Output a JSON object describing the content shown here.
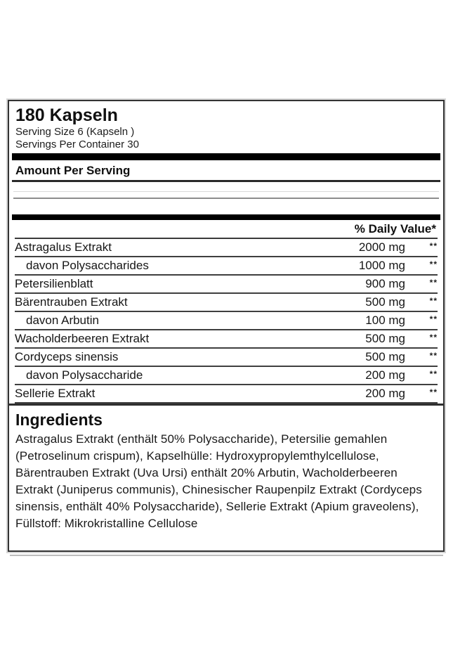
{
  "label": {
    "title": "180 Kapseln",
    "serving_size": "Serving Size 6  (Kapseln )",
    "servings_per_container": "Servings Per Container 30",
    "amount_per_serving": "Amount Per Serving",
    "daily_value_header": "% Daily Value*",
    "rows": [
      {
        "name": "Astragalus Extrakt",
        "amount": "2000 mg",
        "dv": "**",
        "indent": false
      },
      {
        "name": "davon Polysaccharides",
        "amount": "1000 mg",
        "dv": "**",
        "indent": true
      },
      {
        "name": "Petersilienblatt",
        "amount": "900 mg",
        "dv": "**",
        "indent": false
      },
      {
        "name": "Bärentrauben Extrakt",
        "amount": "500 mg",
        "dv": "**",
        "indent": false
      },
      {
        "name": "davon Arbutin",
        "amount": "100 mg",
        "dv": "**",
        "indent": true
      },
      {
        "name": "Wacholderbeeren Extrakt",
        "amount": "500 mg",
        "dv": "**",
        "indent": false
      },
      {
        "name": "Cordyceps sinensis",
        "amount": "500 mg",
        "dv": "**",
        "indent": false
      },
      {
        "name": "davon Polysaccharide",
        "amount": "200 mg",
        "dv": "**",
        "indent": true
      },
      {
        "name": "Sellerie Extrakt",
        "amount": "200 mg",
        "dv": "**",
        "indent": false
      }
    ],
    "ingredients_heading": "Ingredients",
    "ingredients_text": "Astragalus Extrakt (enthält 50% Polysaccharide), Petersilie gemahlen (Petroselinum crispum), Kapselhülle: Hydroxypropylemthylcellulose, Bärentrauben Extrakt (Uva Ursi) enthält 20% Arbutin, Wacholderbeeren Extrakt (Juniperus communis), Chinesischer Raupenpilz Extrakt (Cordyceps sinensis, enthält 40% Polysaccharide), Sellerie Extrakt (Apium graveolens), Füllstoff: Mikrokristalline Cellulose",
    "colors": {
      "text": "#151515",
      "border": "#333333",
      "bar": "#000000",
      "background": "#ffffff",
      "shadow": "#bdbdbd"
    }
  }
}
